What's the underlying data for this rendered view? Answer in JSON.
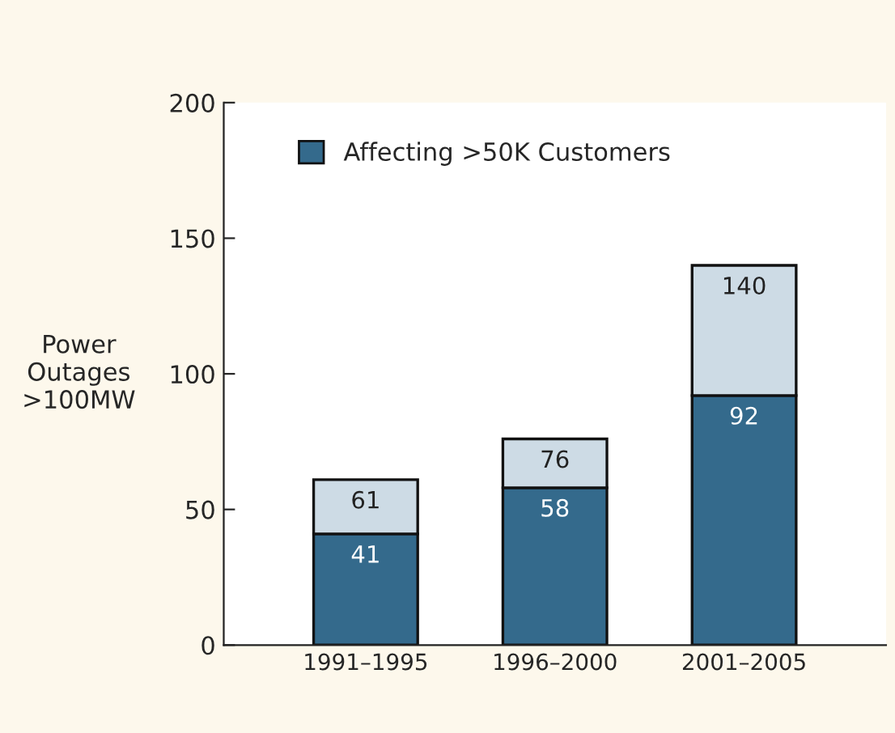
{
  "chart_data": {
    "type": "bar",
    "ylabel": "Power\nOutages\n>100MW",
    "categories": [
      "1991–1995",
      "1996–2000",
      "2001–2005"
    ],
    "stacked": true,
    "series": [
      {
        "name": "Affecting >50K Customers",
        "color": "#346a8c",
        "values": [
          41,
          58,
          92
        ],
        "value_labels": [
          "41",
          "58",
          "92"
        ]
      },
      {
        "color": "#cddbe5",
        "values": [
          20,
          18,
          48
        ]
      }
    ],
    "totals": [
      "61",
      "76",
      "140"
    ],
    "ylim": [
      0,
      200
    ],
    "yticks": [
      0,
      50,
      100,
      150,
      200
    ],
    "grid": false,
    "legend": "top left"
  }
}
